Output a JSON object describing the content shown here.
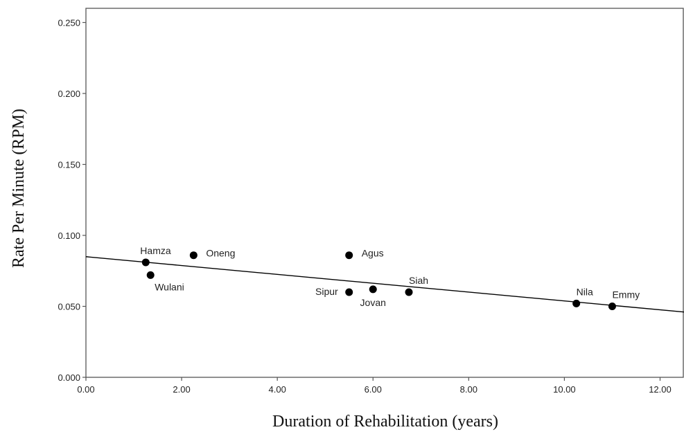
{
  "chart_data": {
    "type": "scatter",
    "title": "",
    "xlabel": "Duration of Rehabilitation (years)",
    "ylabel": "Rate Per Minute (RPM)",
    "xlim": [
      0,
      12.5
    ],
    "ylim": [
      0,
      0.26
    ],
    "xticks": [
      0,
      2,
      4,
      6,
      8,
      10,
      12
    ],
    "xtick_labels": [
      "0.00",
      "2.00",
      "4.00",
      "6.00",
      "8.00",
      "10.00",
      "12.00"
    ],
    "yticks": [
      0,
      0.05,
      0.1,
      0.15,
      0.2,
      0.25
    ],
    "ytick_labels": [
      "0.000",
      "0.050",
      "0.100",
      "0.150",
      "0.200",
      "0.250"
    ],
    "grid": false,
    "points": [
      {
        "name": "Hamza",
        "x": 1.25,
        "y": 0.081,
        "label_pos": "above"
      },
      {
        "name": "Wulani",
        "x": 1.35,
        "y": 0.072,
        "label_pos": "below-right"
      },
      {
        "name": "Oneng",
        "x": 2.25,
        "y": 0.086,
        "label_pos": "right"
      },
      {
        "name": "Agus",
        "x": 5.5,
        "y": 0.086,
        "label_pos": "right"
      },
      {
        "name": "Sipur",
        "x": 5.5,
        "y": 0.06,
        "label_pos": "left"
      },
      {
        "name": "Jovan",
        "x": 6.0,
        "y": 0.062,
        "label_pos": "below"
      },
      {
        "name": "Siah",
        "x": 6.75,
        "y": 0.06,
        "label_pos": "above-right"
      },
      {
        "name": "Nila",
        "x": 10.25,
        "y": 0.052,
        "label_pos": "above-right"
      },
      {
        "name": "Emmy",
        "x": 11.0,
        "y": 0.05,
        "label_pos": "above-right"
      }
    ],
    "fit_line": {
      "type": "linear",
      "x": [
        0,
        12.5
      ],
      "y": [
        0.085,
        0.046
      ]
    },
    "colors": {
      "points": "#000000",
      "line": "#000000"
    }
  }
}
